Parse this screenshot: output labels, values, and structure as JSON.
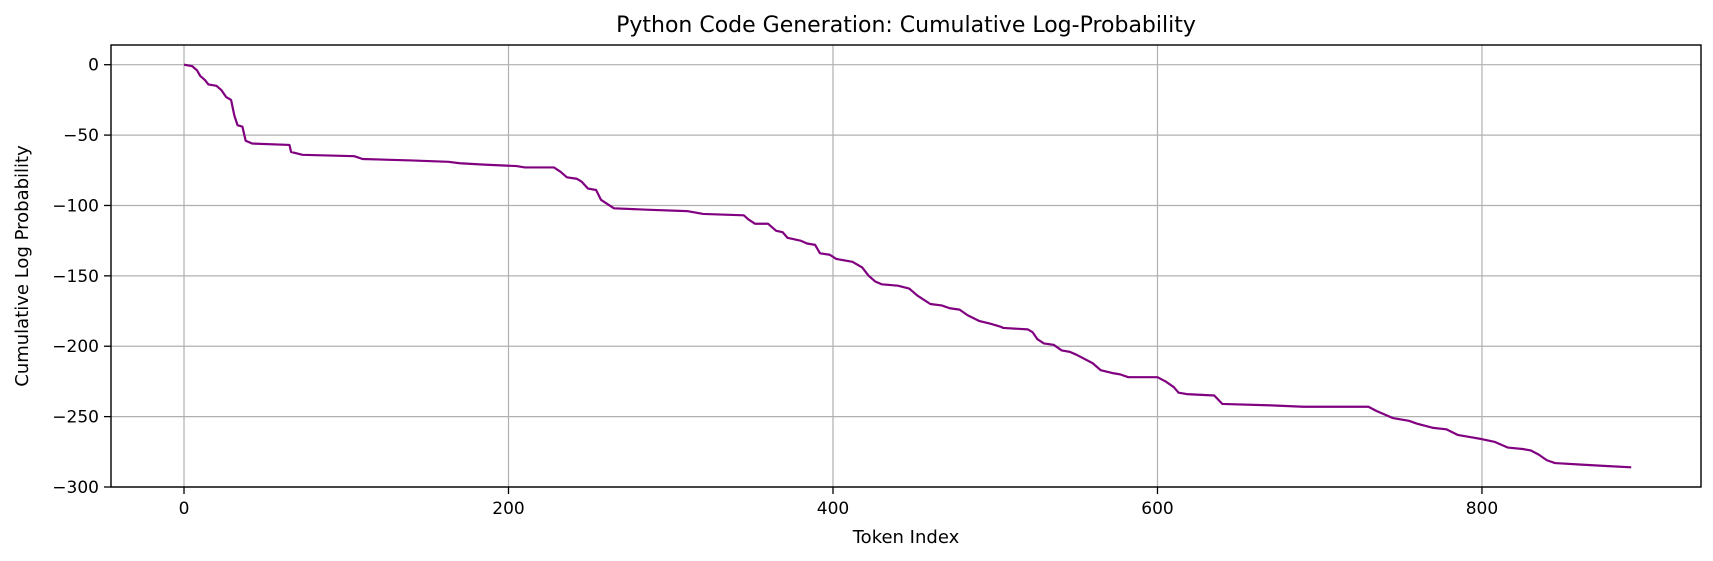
{
  "chart_data": {
    "type": "line",
    "title": "Python Code Generation: Cumulative Log-Probability",
    "xlabel": "Token Index",
    "ylabel": "Cumulative Log Probability",
    "xlim": [
      -45,
      935
    ],
    "ylim": [
      -300,
      14
    ],
    "xticks": [
      0,
      200,
      400,
      600,
      800
    ],
    "yticks": [
      0,
      -50,
      -100,
      -150,
      -200,
      -250,
      -300
    ],
    "xtick_labels": [
      "0",
      "200",
      "400",
      "600",
      "800"
    ],
    "ytick_labels": [
      "0",
      "−50",
      "−100",
      "−150",
      "−200",
      "−250",
      "−300"
    ],
    "grid": true,
    "series": [
      {
        "color": "#800080",
        "points": [
          [
            0,
            0
          ],
          [
            5,
            -1
          ],
          [
            8,
            -4
          ],
          [
            10,
            -8
          ],
          [
            13,
            -11
          ],
          [
            15,
            -14
          ],
          [
            20,
            -15
          ],
          [
            23,
            -18
          ],
          [
            26,
            -23
          ],
          [
            29,
            -25
          ],
          [
            31,
            -36
          ],
          [
            33,
            -43
          ],
          [
            36,
            -44
          ],
          [
            38,
            -54
          ],
          [
            42,
            -56
          ],
          [
            65,
            -57
          ],
          [
            66,
            -62
          ],
          [
            73,
            -64
          ],
          [
            105,
            -65
          ],
          [
            110,
            -67
          ],
          [
            140,
            -68
          ],
          [
            163,
            -69
          ],
          [
            170,
            -70
          ],
          [
            185,
            -71
          ],
          [
            205,
            -72
          ],
          [
            210,
            -73
          ],
          [
            228,
            -73
          ],
          [
            232,
            -76
          ],
          [
            236,
            -80
          ],
          [
            242,
            -81
          ],
          [
            245,
            -83
          ],
          [
            249,
            -88
          ],
          [
            254,
            -89
          ],
          [
            257,
            -96
          ],
          [
            261,
            -99
          ],
          [
            265,
            -102
          ],
          [
            285,
            -103
          ],
          [
            310,
            -104
          ],
          [
            320,
            -106
          ],
          [
            345,
            -107
          ],
          [
            348,
            -110
          ],
          [
            352,
            -113
          ],
          [
            360,
            -113
          ],
          [
            365,
            -118
          ],
          [
            369,
            -119
          ],
          [
            372,
            -123
          ],
          [
            380,
            -125
          ],
          [
            384,
            -127
          ],
          [
            389,
            -128
          ],
          [
            392,
            -134
          ],
          [
            398,
            -135
          ],
          [
            402,
            -138
          ],
          [
            412,
            -140
          ],
          [
            418,
            -144
          ],
          [
            422,
            -150
          ],
          [
            426,
            -154
          ],
          [
            430,
            -156
          ],
          [
            440,
            -157
          ],
          [
            447,
            -159
          ],
          [
            452,
            -164
          ],
          [
            460,
            -170
          ],
          [
            467,
            -171
          ],
          [
            472,
            -173
          ],
          [
            478,
            -174
          ],
          [
            483,
            -178
          ],
          [
            490,
            -182
          ],
          [
            497,
            -184
          ],
          [
            503,
            -186
          ],
          [
            505,
            -187
          ],
          [
            520,
            -188
          ],
          [
            523,
            -190
          ],
          [
            526,
            -195
          ],
          [
            530,
            -198
          ],
          [
            536,
            -199
          ],
          [
            541,
            -203
          ],
          [
            546,
            -204
          ],
          [
            550,
            -206
          ],
          [
            560,
            -212
          ],
          [
            565,
            -217
          ],
          [
            572,
            -219
          ],
          [
            577,
            -220
          ],
          [
            582,
            -222
          ],
          [
            600,
            -222
          ],
          [
            605,
            -225
          ],
          [
            610,
            -229
          ],
          [
            613,
            -233
          ],
          [
            618,
            -234
          ],
          [
            635,
            -235
          ],
          [
            640,
            -241
          ],
          [
            670,
            -242
          ],
          [
            690,
            -243
          ],
          [
            730,
            -243
          ],
          [
            735,
            -246
          ],
          [
            745,
            -251
          ],
          [
            750,
            -252
          ],
          [
            755,
            -253
          ],
          [
            760,
            -255
          ],
          [
            770,
            -258
          ],
          [
            778,
            -259
          ],
          [
            785,
            -263
          ],
          [
            790,
            -264
          ],
          [
            800,
            -266
          ],
          [
            808,
            -268
          ],
          [
            816,
            -272
          ],
          [
            825,
            -273
          ],
          [
            830,
            -274
          ],
          [
            835,
            -277
          ],
          [
            840,
            -281
          ],
          [
            845,
            -283
          ],
          [
            860,
            -284
          ],
          [
            875,
            -285
          ],
          [
            892,
            -286
          ]
        ]
      }
    ]
  }
}
